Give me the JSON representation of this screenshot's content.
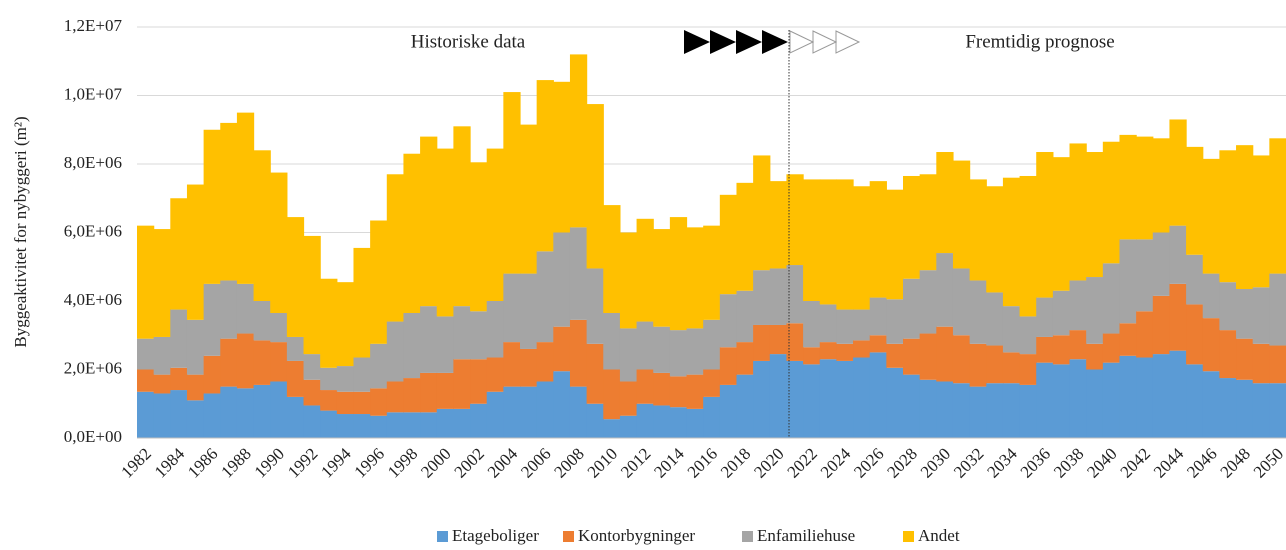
{
  "chart_data": {
    "type": "bar",
    "stacked": true,
    "ylabel": "Byggeaktivitet for nybyggeri (m²)",
    "annotations": [
      "Historiske data",
      "Fremtidig prognose"
    ],
    "categories": [
      "1982",
      null,
      "1984",
      null,
      "1986",
      null,
      "1988",
      null,
      "1990",
      null,
      "1992",
      null,
      "1994",
      null,
      "1996",
      null,
      "1998",
      null,
      "2000",
      null,
      "2002",
      null,
      "2004",
      null,
      "2006",
      null,
      "2008",
      null,
      "2010",
      null,
      "2012",
      null,
      "2014",
      null,
      "2016",
      null,
      "2018",
      null,
      "2020",
      null,
      "2022",
      null,
      "2024",
      null,
      "2026",
      null,
      "2028",
      null,
      "2030",
      null,
      "2032",
      null,
      "2034",
      null,
      "2036",
      null,
      "2038",
      null,
      "2040",
      null,
      "2042",
      null,
      "2044",
      null,
      "2046",
      null,
      "2048",
      null,
      "2050"
    ],
    "ylim": [
      0,
      12000000
    ],
    "yticks": [
      {
        "value": 0,
        "label": "0,0E+00"
      },
      {
        "value": 2000000,
        "label": "2,0E+06"
      },
      {
        "value": 4000000,
        "label": "4,0E+06"
      },
      {
        "value": 6000000,
        "label": "6,0E+06"
      },
      {
        "value": 8000000,
        "label": "8,0E+06"
      },
      {
        "value": 10000000,
        "label": "1,0E+07"
      },
      {
        "value": 12000000,
        "label": "1,2E+07"
      }
    ],
    "grid": true,
    "legend": "bottom",
    "series": [
      {
        "name": "Etageboliger",
        "color": "#5b9bd5",
        "values": [
          1350000,
          1300000,
          1400000,
          1100000,
          1300000,
          1500000,
          1450000,
          1550000,
          1650000,
          1200000,
          950000,
          800000,
          700000,
          700000,
          650000,
          750000,
          750000,
          750000,
          850000,
          850000,
          1000000,
          1350000,
          1500000,
          1500000,
          1650000,
          1950000,
          1500000,
          1000000,
          550000,
          650000,
          1000000,
          950000,
          900000,
          850000,
          1200000,
          1550000,
          1850000,
          2250000,
          2450000,
          2250000,
          2150000,
          2300000,
          2250000,
          2350000,
          2500000,
          2050000,
          1850000,
          1700000,
          1650000,
          1600000,
          1500000,
          1600000,
          1600000,
          1550000,
          2200000,
          2150000,
          2300000,
          2000000,
          2200000,
          2400000,
          2350000,
          2450000,
          2550000,
          2150000,
          1950000,
          1750000,
          1700000,
          1600000,
          1600000
        ]
      },
      {
        "name": "Kontorbygninger",
        "color": "#ed7d31",
        "values": [
          650000,
          550000,
          650000,
          750000,
          1100000,
          1400000,
          1600000,
          1300000,
          1150000,
          1050000,
          750000,
          600000,
          650000,
          650000,
          800000,
          900000,
          1000000,
          1150000,
          1050000,
          1450000,
          1300000,
          1000000,
          1300000,
          1100000,
          1150000,
          1300000,
          1950000,
          1750000,
          1450000,
          1000000,
          1000000,
          950000,
          900000,
          1000000,
          800000,
          1100000,
          950000,
          1050000,
          850000,
          1100000,
          500000,
          500000,
          500000,
          500000,
          500000,
          700000,
          1050000,
          1350000,
          1600000,
          1400000,
          1250000,
          1100000,
          900000,
          900000,
          750000,
          850000,
          850000,
          750000,
          850000,
          950000,
          1350000,
          1700000,
          1950000,
          1750000,
          1550000,
          1400000,
          1200000,
          1150000,
          1100000
        ]
      },
      {
        "name": "Enfamiliehuse",
        "color": "#a5a5a5",
        "values": [
          900000,
          1100000,
          1700000,
          1600000,
          2100000,
          1700000,
          1450000,
          1150000,
          850000,
          700000,
          750000,
          650000,
          750000,
          1000000,
          1300000,
          1750000,
          1900000,
          1950000,
          1650000,
          1550000,
          1400000,
          1650000,
          2000000,
          2200000,
          2650000,
          2750000,
          2700000,
          2200000,
          1650000,
          1550000,
          1400000,
          1350000,
          1350000,
          1350000,
          1450000,
          1550000,
          1500000,
          1600000,
          1650000,
          1700000,
          1350000,
          1100000,
          1000000,
          900000,
          1100000,
          1300000,
          1750000,
          1850000,
          2150000,
          1950000,
          1850000,
          1550000,
          1350000,
          1100000,
          1150000,
          1300000,
          1450000,
          1950000,
          2050000,
          2450000,
          2100000,
          1850000,
          1700000,
          1450000,
          1300000,
          1400000,
          1450000,
          1650000,
          2100000
        ]
      },
      {
        "name": "Andet",
        "color": "#ffc000",
        "values": [
          3300000,
          3150000,
          3250000,
          3950000,
          4500000,
          4600000,
          5000000,
          4400000,
          4100000,
          3500000,
          3450000,
          2600000,
          2450000,
          3200000,
          3600000,
          4300000,
          4650000,
          4950000,
          4900000,
          5250000,
          4350000,
          4450000,
          5300000,
          4350000,
          5000000,
          4400000,
          5050000,
          4800000,
          3150000,
          2800000,
          3000000,
          2850000,
          3300000,
          2950000,
          2750000,
          2900000,
          3150000,
          3350000,
          2550000,
          2650000,
          3550000,
          3650000,
          3800000,
          3600000,
          3400000,
          3200000,
          3000000,
          2800000,
          2950000,
          3150000,
          2950000,
          3100000,
          3750000,
          4100000,
          4250000,
          3900000,
          4000000,
          3650000,
          3550000,
          3050000,
          3000000,
          2750000,
          3100000,
          3150000,
          3350000,
          3850000,
          4200000,
          3850000,
          3950000
        ]
      }
    ]
  }
}
